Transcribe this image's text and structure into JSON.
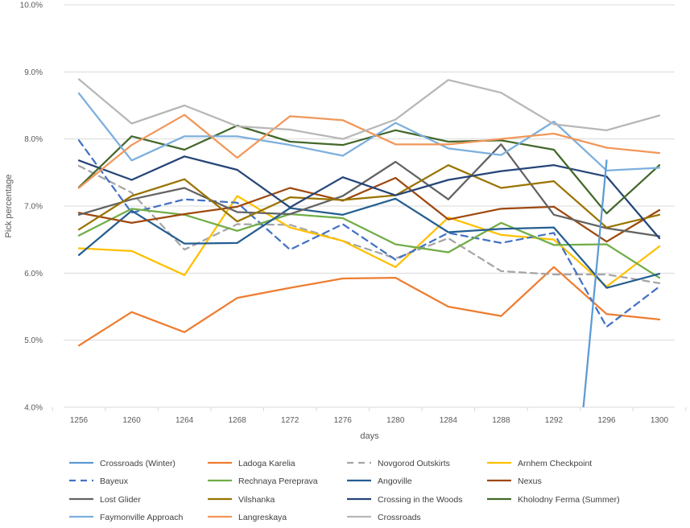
{
  "chart_data": {
    "type": "line",
    "title": "",
    "xlabel": "days",
    "ylabel": "Pick percentage",
    "x": [
      1256,
      1260,
      1264,
      1268,
      1272,
      1276,
      1280,
      1284,
      1288,
      1292,
      1296,
      1300
    ],
    "x_ticks": [
      "1256",
      "1260",
      "1264",
      "1268",
      "1272",
      "1276",
      "1280",
      "1284",
      "1288",
      "1292",
      "1296",
      "1300"
    ],
    "ylim": [
      4.0,
      10.0
    ],
    "y_ticks": [
      4.0,
      5.0,
      6.0,
      7.0,
      8.0,
      9.0,
      10.0
    ],
    "y_tick_labels": [
      "4.0%",
      "5.0%",
      "6.0%",
      "7.0%",
      "8.0%",
      "9.0%",
      "10.0%"
    ],
    "grid": "horizontal",
    "legend_position": "bottom",
    "series": [
      {
        "name": "Crossroads (Winter)",
        "color": "#5b9bd5",
        "dash": false,
        "values": [
          null,
          null,
          null,
          null,
          null,
          null,
          null,
          null,
          null,
          null,
          null,
          null
        ]
      },
      {
        "name": "Ladoga Karelia",
        "color": "#ed7d31",
        "dash": false,
        "values": [
          4.92,
          5.42,
          5.12,
          5.63,
          5.78,
          5.92,
          5.93,
          5.5,
          5.36,
          6.09,
          5.39,
          5.31
        ]
      },
      {
        "name": "Novgorod Outskirts",
        "color": "#a5a5a5",
        "dash": true,
        "values": [
          7.6,
          7.2,
          6.35,
          6.73,
          6.72,
          6.48,
          6.22,
          6.52,
          6.03,
          5.98,
          5.98,
          5.85
        ]
      },
      {
        "name": "Arnhem Checkpoint",
        "color": "#ffc000",
        "dash": false,
        "values": [
          6.37,
          6.33,
          5.97,
          7.15,
          6.68,
          6.48,
          6.09,
          6.83,
          6.57,
          6.5,
          5.8,
          6.4
        ]
      },
      {
        "name": "Bayeux",
        "color": "#4472c4",
        "dash": true,
        "values": [
          7.98,
          6.9,
          7.1,
          7.05,
          6.35,
          6.73,
          6.2,
          6.6,
          6.45,
          6.6,
          5.2,
          5.8
        ]
      },
      {
        "name": "Rechnaya Perepravа",
        "color": "#70ad47",
        "dash": false,
        "values": [
          6.56,
          6.96,
          6.87,
          6.63,
          6.88,
          6.82,
          6.43,
          6.31,
          6.75,
          6.42,
          6.43,
          5.93
        ]
      },
      {
        "name": "Angoville",
        "color": "#255e91",
        "dash": false,
        "values": [
          6.27,
          6.93,
          6.44,
          6.45,
          6.97,
          6.87,
          7.11,
          6.61,
          6.66,
          6.68,
          5.78,
          5.99
        ]
      },
      {
        "name": "Nexus",
        "color": "#9e480e",
        "dash": false,
        "values": [
          6.9,
          6.75,
          6.88,
          6.99,
          7.27,
          7.08,
          7.42,
          6.8,
          6.96,
          6.99,
          6.47,
          6.94
        ]
      },
      {
        "name": "Lost Glider",
        "color": "#636363",
        "dash": false,
        "values": [
          6.87,
          7.1,
          7.27,
          6.91,
          6.88,
          7.15,
          7.66,
          7.1,
          7.92,
          6.87,
          6.67,
          6.55
        ]
      },
      {
        "name": "Vilshanka",
        "color": "#997300",
        "dash": false,
        "values": [
          6.65,
          7.15,
          7.4,
          6.77,
          7.13,
          7.09,
          7.16,
          7.61,
          7.27,
          7.37,
          6.68,
          6.87
        ]
      },
      {
        "name": "Crossing in the Woods",
        "color": "#264478",
        "dash": false,
        "values": [
          7.68,
          7.39,
          7.74,
          7.54,
          6.98,
          7.43,
          7.16,
          7.39,
          7.52,
          7.61,
          7.44,
          6.52
        ]
      },
      {
        "name": "Kholodny Ferma (Summer)",
        "color": "#43682b",
        "dash": false,
        "values": [
          7.28,
          8.04,
          7.84,
          8.2,
          7.96,
          7.91,
          8.13,
          7.96,
          7.98,
          7.84,
          6.89,
          7.61
        ]
      },
      {
        "name": "Faymonville Approach",
        "color": "#7cafdd",
        "dash": false,
        "values": [
          8.68,
          7.68,
          8.04,
          8.04,
          7.91,
          7.75,
          8.24,
          7.86,
          7.76,
          8.26,
          7.53,
          7.57
        ]
      },
      {
        "name": "Langreskaya",
        "color": "#f1975a",
        "dash": false,
        "values": [
          7.27,
          7.91,
          8.36,
          7.72,
          8.34,
          8.28,
          7.92,
          7.92,
          8.0,
          8.08,
          7.87,
          7.79
        ]
      },
      {
        "name": "Crossroads",
        "color": "#b7b7b7",
        "dash": false,
        "values": [
          8.89,
          8.23,
          8.5,
          8.19,
          8.14,
          8.0,
          8.29,
          8.88,
          8.69,
          8.22,
          8.13,
          8.35
        ]
      }
    ],
    "segments": [
      {
        "series": "Crossroads (Winter)",
        "color": "#5b9bd5",
        "from": [
          1294,
          3.5
        ],
        "to": [
          1296,
          7.68
        ]
      }
    ]
  }
}
